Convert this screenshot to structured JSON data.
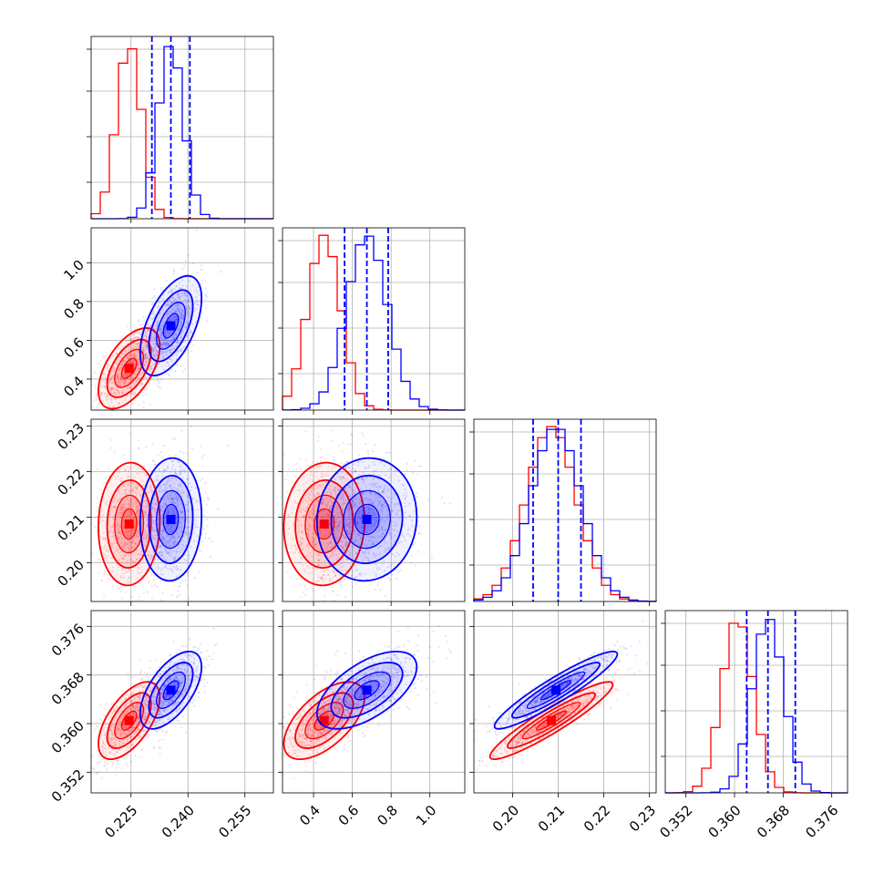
{
  "chart_data": {
    "type": "corner",
    "grid": true,
    "parameters": [
      {
        "id": "p1",
        "range": [
          0.2145,
          0.2625
        ],
        "ticks": [
          0.225,
          0.24,
          0.255
        ],
        "tick_labels": [
          "0.225",
          "0.240",
          "0.255"
        ]
      },
      {
        "id": "p2",
        "range": [
          0.24,
          1.18
        ],
        "ticks": [
          0.4,
          0.6,
          0.8,
          1.0
        ],
        "tick_labels": [
          "0.4",
          "0.6",
          "0.8",
          "1.0"
        ]
      },
      {
        "id": "p3",
        "range": [
          0.1915,
          0.2315
        ],
        "ticks": [
          0.2,
          0.21,
          0.22,
          0.23
        ],
        "tick_labels": [
          "0.20",
          "0.21",
          "0.22",
          "0.23"
        ]
      },
      {
        "id": "p4",
        "range": [
          0.3486,
          0.3786
        ],
        "ticks": [
          0.352,
          0.36,
          0.368,
          0.376
        ],
        "tick_labels": [
          "0.352",
          "0.360",
          "0.368",
          "0.376"
        ]
      }
    ],
    "series": [
      {
        "color": "#ff0000",
        "mean": [
          0.2245,
          0.455,
          0.2085,
          0.3605
        ],
        "sigma": [
          0.0033,
          0.085,
          0.0055,
          0.0026
        ]
      },
      {
        "color": "#0000ff",
        "mean": [
          0.2355,
          0.675,
          0.2095,
          0.3655
        ],
        "sigma": [
          0.0033,
          0.105,
          0.0055,
          0.0026
        ],
        "quantiles": [
          [
            0.2305,
            0.2355,
            0.2405
          ],
          [
            0.56,
            0.675,
            0.785
          ],
          [
            0.2045,
            0.21,
            0.215
          ],
          [
            0.362,
            0.3655,
            0.37
          ]
        ]
      }
    ],
    "correlation": [
      [
        0,
        1,
        2
      ],
      [
        1,
        0
      ],
      [
        2,
        0
      ],
      [
        3,
        0
      ],
      [
        2,
        3,
        0.93
      ]
    ]
  }
}
